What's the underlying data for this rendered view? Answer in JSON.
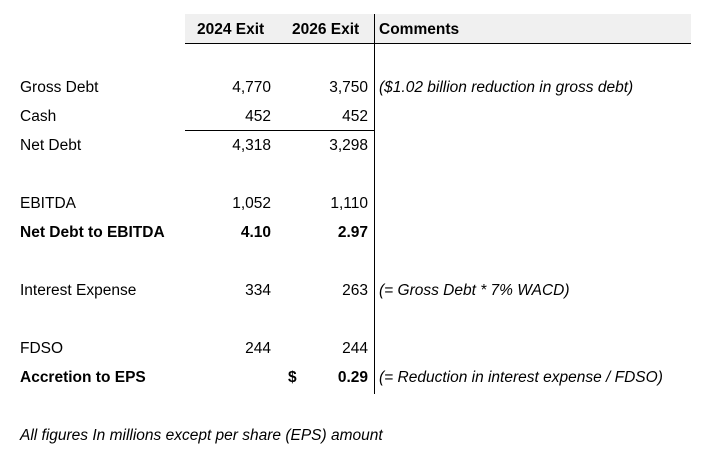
{
  "header": {
    "col1": "2024 Exit",
    "col2": "2026 Exit",
    "comments": "Comments"
  },
  "rows": [
    {
      "label": "Gross Debt",
      "v2024": "4,770",
      "v2026": "3,750",
      "comment": "($1.02 billion reduction in gross debt)"
    },
    {
      "label": "Cash",
      "v2024": "452",
      "v2026": "452",
      "comment": ""
    },
    {
      "label": "Net Debt",
      "v2024": "4,318",
      "v2026": "3,298",
      "comment": ""
    },
    {
      "label": "EBITDA",
      "v2024": "1,052",
      "v2026": "1,110",
      "comment": ""
    },
    {
      "label": "Net Debt to EBITDA",
      "v2024": "4.10",
      "v2026": "2.97",
      "comment": ""
    },
    {
      "label": "Interest Expense",
      "v2024": "334",
      "v2026": "263",
      "comment": "(= Gross Debt * 7% WACD)"
    },
    {
      "label": "FDSO",
      "v2024": "244",
      "v2026": "244",
      "comment": ""
    },
    {
      "label": "Accretion to EPS",
      "v2024": "",
      "currency": "$",
      "v2026": "0.29",
      "comment": "(= Reduction in interest expense / FDSO)"
    }
  ],
  "footnote": "All figures In millions except per share (EPS) amount"
}
